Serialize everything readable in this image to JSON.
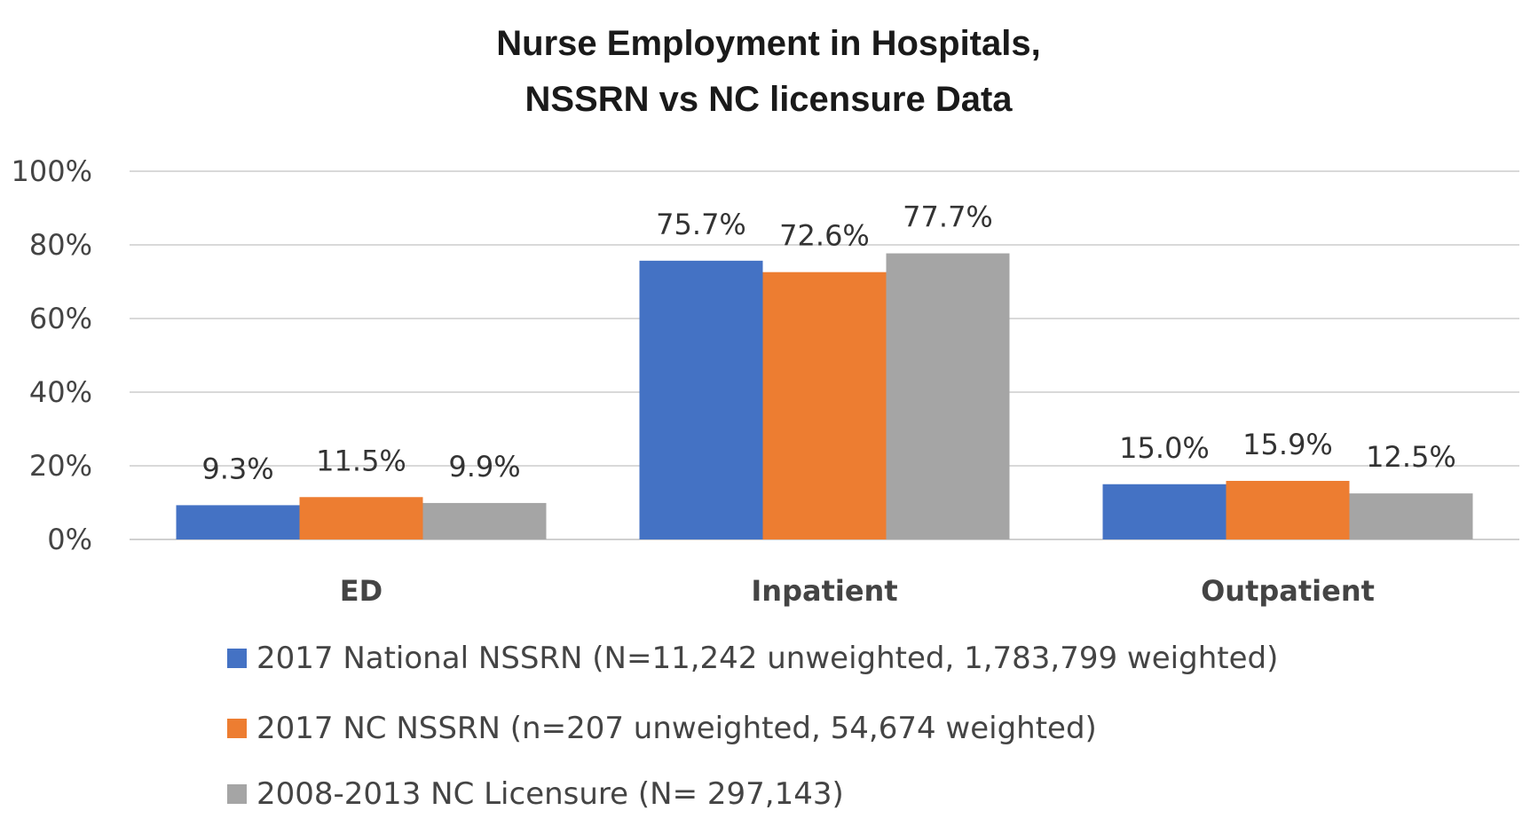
{
  "chart_data": {
    "type": "bar",
    "title": [
      "Nurse Employment in Hospitals,",
      "NSSRN vs NC licensure Data"
    ],
    "categories": [
      "ED",
      "Inpatient",
      "Outpatient"
    ],
    "ylim": [
      0,
      100
    ],
    "yticks": [
      "0%",
      "20%",
      "40%",
      "60%",
      "80%",
      "100%"
    ],
    "grid": true,
    "legend_position": "bottom",
    "series": [
      {
        "name": "2017 National NSSRN (N=11,242 unweighted, 1,783,799 weighted)",
        "color": "#4472C4",
        "values": [
          9.3,
          75.7,
          15.0
        ],
        "labels": [
          "9.3%",
          "75.7%",
          "15.0%"
        ]
      },
      {
        "name": "2017 NC NSSRN (n=207 unweighted, 54,674 weighted)",
        "color": "#ED7D31",
        "values": [
          11.5,
          72.6,
          15.9
        ],
        "labels": [
          "11.5%",
          "72.6%",
          "15.9%"
        ]
      },
      {
        "name": "2008-2013 NC Licensure (N= 297,143)",
        "color": "#A5A5A5",
        "values": [
          9.9,
          77.7,
          12.5
        ],
        "labels": [
          "9.9%",
          "77.7%",
          "12.5%"
        ]
      }
    ]
  }
}
